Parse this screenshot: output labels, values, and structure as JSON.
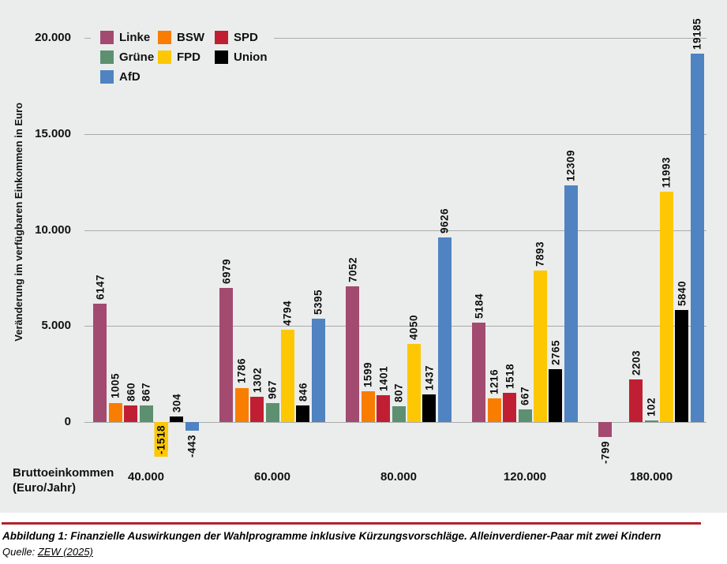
{
  "chart_data": {
    "type": "bar",
    "ylabel": "Veränderung im verfügbaren Einkommen in Euro",
    "xlabel_line1": "Bruttoeinkommen",
    "xlabel_line2": "(Euro/Jahr)",
    "categories": [
      "40.000",
      "60.000",
      "80.000",
      "120.000",
      "180.000"
    ],
    "series": [
      {
        "name": "Linke",
        "color": "#a34a70",
        "values": [
          6147,
          6979,
          7052,
          5184,
          -799
        ]
      },
      {
        "name": "BSW",
        "color": "#f97d00",
        "values": [
          1005,
          1786,
          1599,
          1216,
          null
        ]
      },
      {
        "name": "SPD",
        "color": "#c01f33",
        "values": [
          860,
          1302,
          1401,
          1518,
          2203
        ]
      },
      {
        "name": "Grüne",
        "color": "#5c9070",
        "values": [
          867,
          967,
          807,
          667,
          102
        ]
      },
      {
        "name": "FPD",
        "color": "#fdc803",
        "values": [
          -1518,
          4794,
          4050,
          7893,
          11993
        ]
      },
      {
        "name": "Union",
        "color": "#000000",
        "values": [
          304,
          846,
          1437,
          2765,
          5840
        ]
      },
      {
        "name": "AfD",
        "color": "#5083c1",
        "values": [
          -443,
          5395,
          9626,
          12309,
          19185
        ]
      }
    ],
    "yticks": [
      {
        "label": "0",
        "value": 0
      },
      {
        "label": "5.000",
        "value": 5000
      },
      {
        "label": "10.000",
        "value": 10000
      },
      {
        "label": "15.000",
        "value": 15000
      },
      {
        "label": "20.000",
        "value": 20000
      }
    ],
    "ylim": [
      -2500,
      20000
    ],
    "grid": "horizontal",
    "legend_position": "top-left",
    "label_highlight": {
      "series_index": 4,
      "category_index": 0,
      "color": "#fdc803"
    }
  },
  "colors": {
    "chart_background": "#ebedec",
    "gridline": "#a8abaa",
    "caption_rule": "#b1222c"
  },
  "caption": {
    "figure_text": "Abbildung 1: Finanzielle Auswirkungen der Wahlprogramme inklusive Kürzungsvorschläge. Alleinverdiener-Paar mit zwei Kindern",
    "source_prefix": "Quelle: ",
    "source_link": "ZEW (2025)"
  }
}
